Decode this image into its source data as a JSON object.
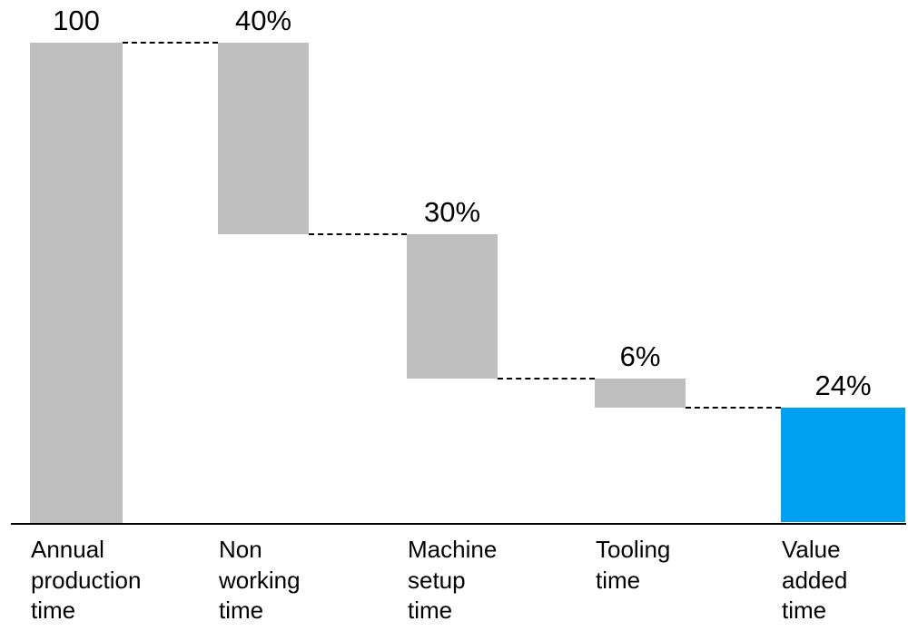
{
  "chart_data": {
    "type": "waterfall",
    "title": "",
    "xlabel": "",
    "ylabel": "",
    "axis_max": 100,
    "baseline": 0,
    "grid": false,
    "legend": false,
    "columns": [
      {
        "category": "Annual\nproduction\ntime",
        "value": 100,
        "value_label": "100",
        "role": "start"
      },
      {
        "category": "Non\nworking\ntime",
        "value": 40,
        "value_label": "40%",
        "role": "decrease"
      },
      {
        "category": "Machine\nsetup\ntime",
        "value": 30,
        "value_label": "30%",
        "role": "decrease"
      },
      {
        "category": "Tooling\ntime",
        "value": 6,
        "value_label": "6%",
        "role": "decrease"
      },
      {
        "category": "Value\nadded\ntime",
        "value": 24,
        "value_label": "24%",
        "role": "result"
      }
    ],
    "connector_levels": [
      100,
      60,
      30,
      24
    ],
    "colors": {
      "bar_default": "#BFBFBF",
      "bar_result": "#00A0F0",
      "text": "#000000",
      "axis": "#000000",
      "connector": "#000000"
    }
  }
}
